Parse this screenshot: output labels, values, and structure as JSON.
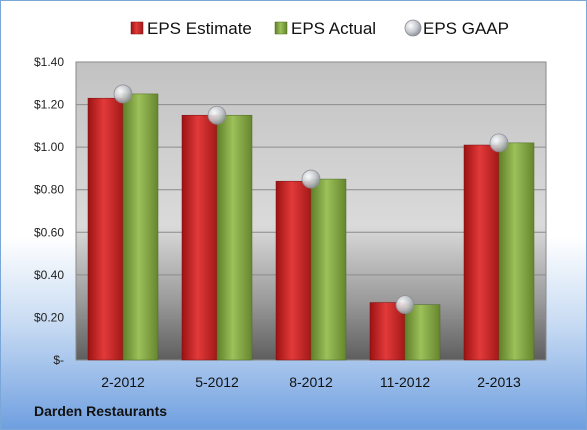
{
  "company": "Darden Restaurants",
  "chart_data": {
    "type": "bar",
    "categories": [
      "2-2012",
      "5-2012",
      "8-2012",
      "11-2012",
      "2-2013"
    ],
    "series": [
      {
        "name": "EPS Estimate",
        "values": [
          1.23,
          1.15,
          0.84,
          0.27,
          1.01
        ],
        "color": "#d42b2b"
      },
      {
        "name": "EPS Actual",
        "values": [
          1.25,
          1.15,
          0.85,
          0.26,
          1.02
        ],
        "color": "#8db04a"
      }
    ],
    "gaap": {
      "name": "EPS GAAP",
      "values": [
        1.25,
        1.15,
        0.85,
        0.26,
        1.02
      ],
      "color": "#b8bcc4"
    },
    "yticks": [
      {
        "value": 0,
        "label": "$-"
      },
      {
        "value": 0.2,
        "label": "$0.20"
      },
      {
        "value": 0.4,
        "label": "$0.40"
      },
      {
        "value": 0.6,
        "label": "$0.60"
      },
      {
        "value": 0.8,
        "label": "$0.80"
      },
      {
        "value": 1.0,
        "label": "$1.00"
      },
      {
        "value": 1.2,
        "label": "$1.20"
      },
      {
        "value": 1.4,
        "label": "$1.40"
      }
    ],
    "ylim": [
      0,
      1.4
    ],
    "grid": true,
    "legend_position": "top"
  }
}
